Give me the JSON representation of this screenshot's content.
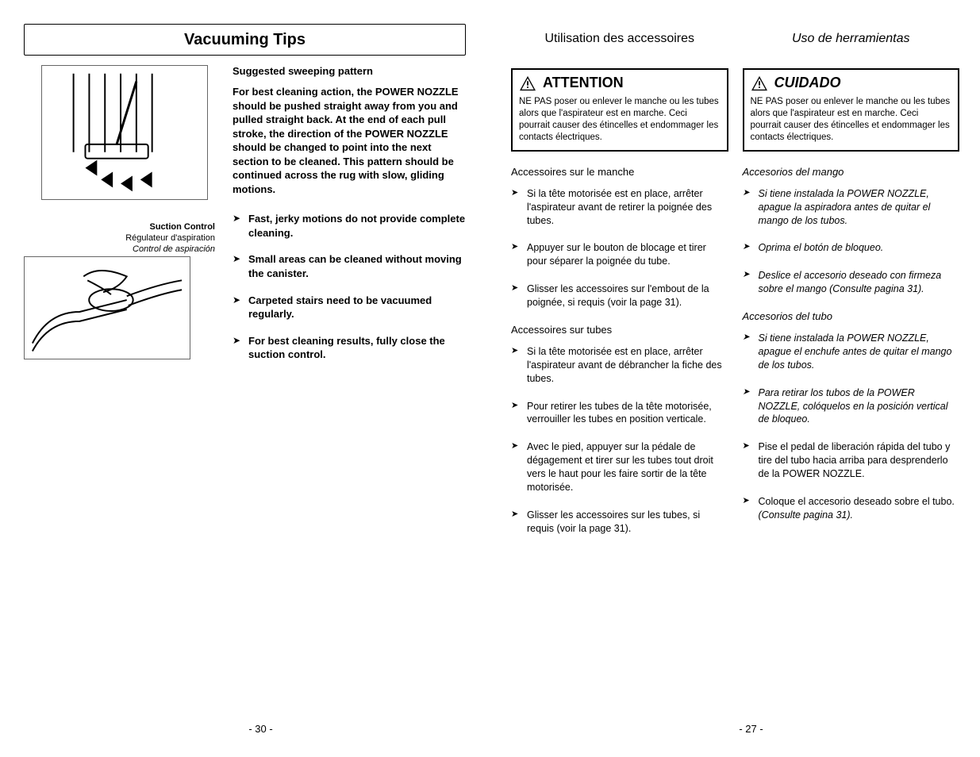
{
  "left": {
    "title": "Vacuuming Tips",
    "fig1_alt": "Power nozzle sweeping pattern",
    "suction_label_en": "Suction Control",
    "suction_label_fr": "Régulateur d'aspiration",
    "suction_label_es": "Control de aspiración",
    "fig2_alt": "Suction control on hose handle",
    "subhead": "Suggested sweeping pattern",
    "paragraph": "For best cleaning action, the POWER NOZZLE should be pushed straight away from you and pulled straight back. At the end of each pull stroke, the direction of the POWER NOZZLE should be changed to point into the next section to be cleaned. This pattern should be continued across the rug with slow, gliding motions.",
    "tips": [
      "Fast, jerky motions do not provide complete cleaning.",
      "Small areas can be cleaned without moving the canister.",
      "Carpeted stairs need to be vacuumed regularly.",
      "For best cleaning results, fully close the suction control."
    ],
    "page_num": "- 30 -"
  },
  "right": {
    "fr": {
      "title": "Utilisation des accessoires",
      "warn_title": "ATTENTION",
      "warn_text": "NE PAS poser ou enlever le manche ou les tubes alors que l'aspirateur est en marche. Ceci pourrait causer des étincelles et endommager les contacts électriques.",
      "sec1": "Accessoires sur le manche",
      "list1": [
        "Si la tête motorisée est en place, arrêter l'aspirateur avant de retirer la poignée des tubes.",
        "Appuyer sur le bouton de blocage et tirer pour séparer la poignée du tube.",
        "Glisser les accessoires sur l'embout de la poignée, si requis (voir la page 31)."
      ],
      "sec2": "Accessoires sur tubes",
      "list2": [
        "Si la tête motorisée est en place, arrêter l'aspirateur avant de débrancher la fiche des tubes.",
        "Pour retirer les tubes de la tête motorisée, verrouiller les tubes en position verticale.",
        "Avec le pied, appuyer sur la pédale de dégagement et tirer sur les tubes tout droit vers le haut pour les faire sortir de la tête motorisée.",
        "Glisser les accessoires sur les tubes, si requis (voir la page 31)."
      ]
    },
    "es": {
      "title": "Uso de herramientas",
      "warn_title": "CUIDADO",
      "warn_text": "NE PAS poser ou enlever le manche ou les tubes alors que l'aspirateur est en marche. Ceci pourrait causer des étincelles et endommager les contacts électriques.",
      "sec1": "Accesorios del mango",
      "list1": [
        "Si tiene  instalada la POWER NOZZLE, apague la aspiradora antes de quitar el mango de los tubos.",
        "Oprima el  botón de bloqueo.",
        "Deslice el accesorio deseado con firmeza sobre el mango  (Consulte pagina 31)."
      ],
      "sec2": "Accesorios del tubo",
      "list2": [
        {
          "text": "Si tiene  instalada la POWER NOZZLE, apague  el enchufe antes de quitar el mango de los tubos.",
          "italic": true
        },
        {
          "text": "Para retirar los tubos de la POWER NOZZLE, colóquelos en la posición vertical de bloqueo.",
          "italic": true
        },
        {
          "text": "Pise el pedal de liberación rápida del tubo y tire del tubo hacia arriba para desprenderlo de la POWER NOZZLE.",
          "italic": false
        },
        {
          "text": "Coloque el accesorio deseado sobre el tubo.",
          "italic": false,
          "suffix_italic": " (Consulte pagina 31)."
        }
      ]
    },
    "page_num": "- 27 -"
  }
}
